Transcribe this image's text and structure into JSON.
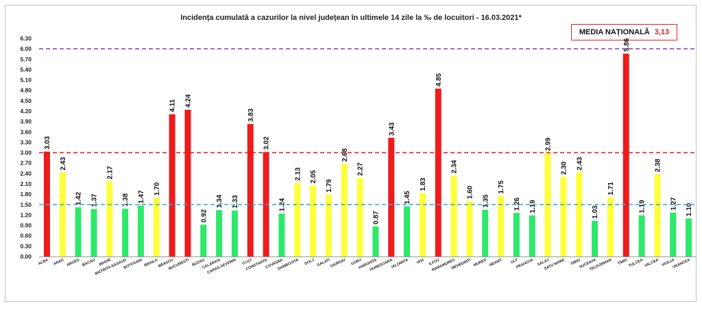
{
  "chart_data": {
    "type": "bar",
    "title": "Incidența cumulată a cazurilor la nivel județean în ultimele 14 zile la ‰ de locuitori - 16.03.2021*",
    "badge": {
      "label": "MEDIA NAȚIONALĂ",
      "value": "3,13"
    },
    "categories": [
      "ALBA",
      "ARAD",
      "ARGES",
      "BACAU",
      "BIHOR",
      "BISTRITA NASAUD",
      "BOTOSANI",
      "BRAILA",
      "BRASOV",
      "BUCURESTI",
      "BUZAU",
      "CALARASI",
      "CARAS-SEVERIN",
      "CLUJ",
      "CONSTANTA",
      "COVASNA",
      "DAMBOVITA",
      "DOLJ",
      "GALATI",
      "GIURGIU",
      "GORJ",
      "HARGHITA",
      "HUNEDOARA",
      "IALOMITA",
      "IASI",
      "ILFOV",
      "MARAMURES",
      "MEHEDINTI",
      "MURES",
      "NEAMT",
      "OLT",
      "PRAHOVA",
      "SALAJ",
      "SATU MARE",
      "SIBIU",
      "SUCEAVA",
      "TELEORMAN",
      "TIMIS",
      "TULCEA",
      "VALCEA",
      "VASLUI",
      "VRANCEA"
    ],
    "values": [
      3.03,
      2.43,
      1.42,
      1.37,
      2.17,
      1.38,
      1.47,
      1.7,
      4.11,
      4.24,
      0.92,
      1.34,
      1.33,
      3.83,
      3.02,
      1.24,
      2.13,
      2.05,
      1.79,
      2.68,
      2.27,
      0.87,
      3.43,
      1.45,
      1.83,
      4.85,
      2.34,
      1.6,
      1.35,
      1.75,
      1.26,
      1.19,
      2.99,
      2.3,
      2.43,
      1.03,
      1.71,
      5.86,
      1.19,
      2.38,
      1.27,
      1.1
    ],
    "value_labels": [
      "3.03",
      "2.43",
      "1.42",
      "1.37",
      "2.17",
      "1.38",
      "1.47",
      "1.70",
      "4.11",
      "4.24",
      "0.92",
      "1.34",
      "1.33",
      "3.83",
      "3.02",
      "1.24",
      "2.13",
      "2.05",
      "1.79",
      "2.68",
      "2.27",
      "0.87",
      "3.43",
      "1.45",
      "1.83",
      "4.85",
      "2.34",
      "1.60",
      "1.35",
      "1.75",
      "1.26",
      "1.19",
      "2.99",
      "2.30",
      "2.43",
      "1.03",
      "1.71",
      "5.86",
      "1.19",
      "2.38",
      "1.27",
      "1.10"
    ],
    "y_ticks": [
      "0.00",
      "0.30",
      "0.60",
      "0.90",
      "1.20",
      "1.50",
      "1.80",
      "2.10",
      "2.40",
      "2.70",
      "3.00",
      "3.30",
      "3.60",
      "3.90",
      "4.20",
      "4.50",
      "4.80",
      "5.10",
      "5.40",
      "5.70",
      "6.00",
      "6.30"
    ],
    "ylim": [
      0,
      6.3
    ],
    "thresholds": [
      {
        "value": 6.0,
        "color": "#8e44c8"
      },
      {
        "value": 3.0,
        "color": "#e02020"
      },
      {
        "value": 1.5,
        "color": "#33aadd"
      }
    ],
    "colors": {
      "low": "#2ee86a",
      "medium": "#ffff3a",
      "high": "#ee1c1c"
    },
    "color_rule": "value <= 1.5 green, 1.5 < value <= 3 yellow, value > 3 red",
    "grid": false,
    "legend": "none"
  }
}
